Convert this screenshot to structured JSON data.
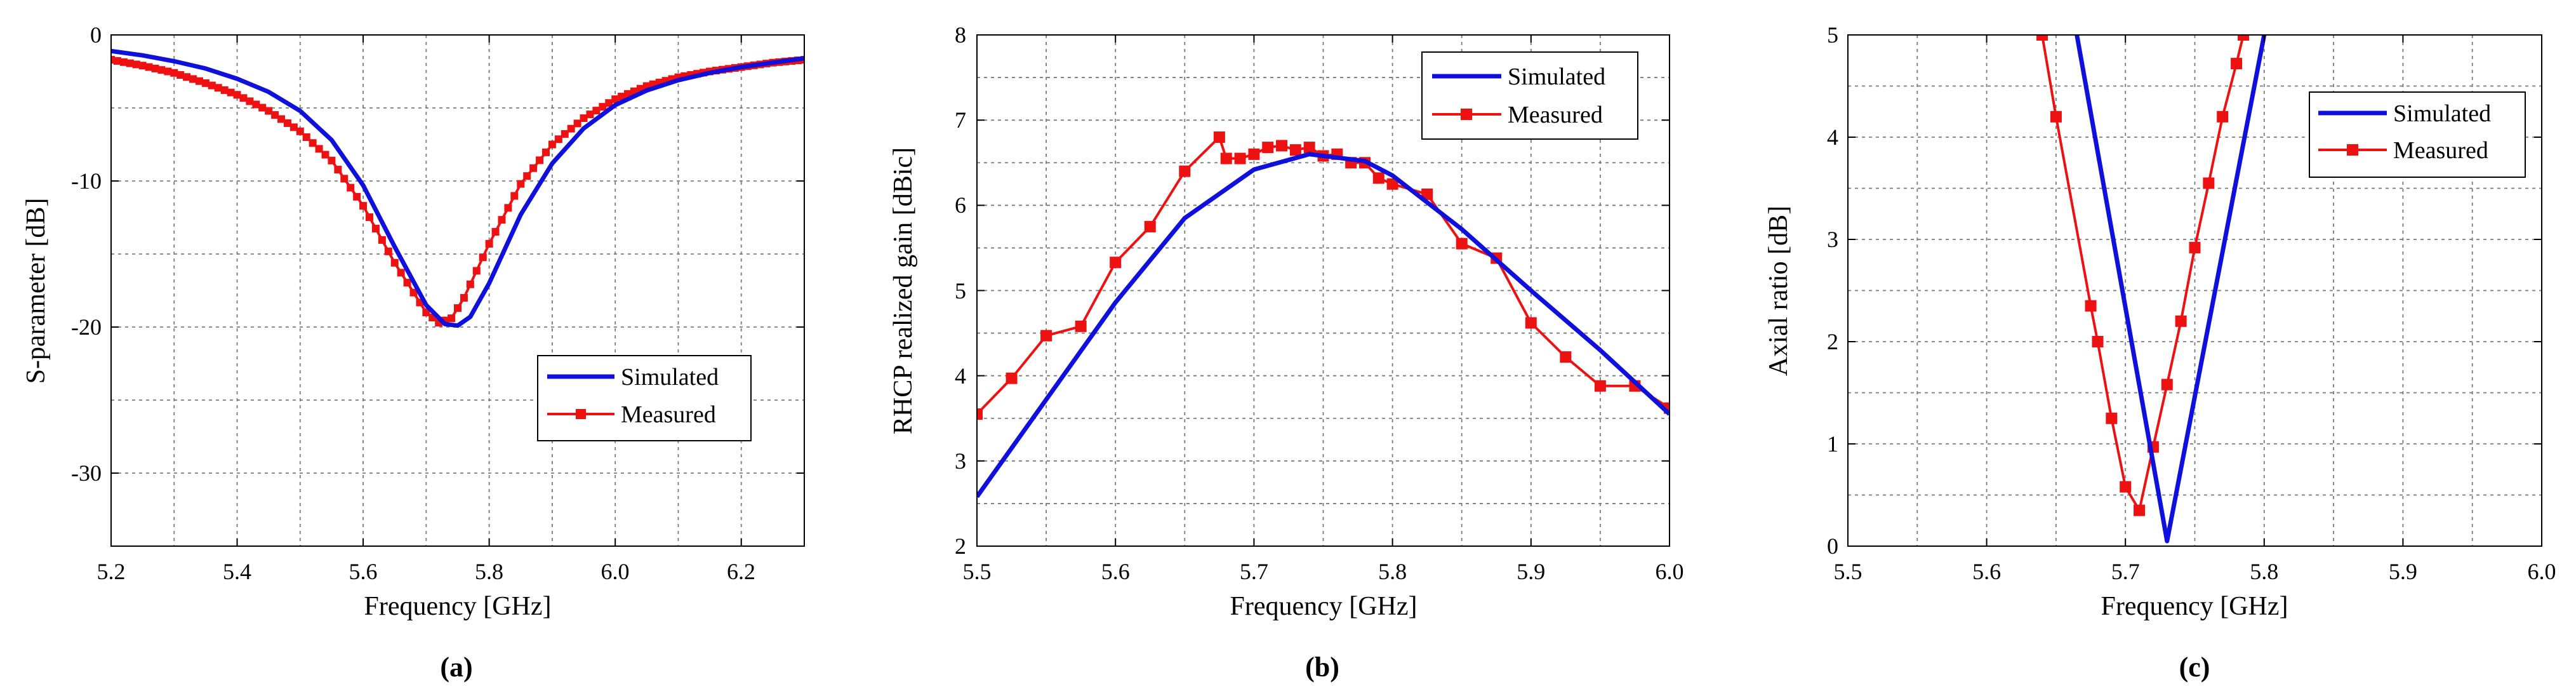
{
  "chart_data": [
    {
      "panel": "(a)",
      "type": "line",
      "xlabel": "Frequency [GHz]",
      "ylabel": "S-parameter [dB]",
      "xlim": [
        5.2,
        6.3
      ],
      "ylim": [
        -35,
        0
      ],
      "xticks": [
        5.2,
        5.4,
        5.6,
        5.8,
        6.0,
        6.2
      ],
      "xtick_labels": [
        "5.2",
        "5.4",
        "5.6",
        "5.8",
        "6.0",
        "6.2"
      ],
      "yticks": [
        0,
        -10,
        -20,
        -30
      ],
      "ytick_labels": [
        "0",
        "-10",
        "-20",
        "-30"
      ],
      "xgrid": [
        5.2,
        5.3,
        5.4,
        5.5,
        5.6,
        5.7,
        5.8,
        5.9,
        6.0,
        6.1,
        6.2
      ],
      "ygrid": [
        -5,
        -10,
        -15,
        -20,
        -25,
        -30
      ],
      "legend": {
        "position": "lower-right",
        "entries": [
          "Simulated",
          "Measured"
        ]
      },
      "series": [
        {
          "name": "Simulated",
          "color": "#1010dd",
          "style": "solid",
          "x": [
            5.2,
            5.25,
            5.3,
            5.35,
            5.4,
            5.45,
            5.5,
            5.55,
            5.6,
            5.65,
            5.7,
            5.73,
            5.75,
            5.77,
            5.8,
            5.85,
            5.9,
            5.95,
            6.0,
            6.05,
            6.1,
            6.15,
            6.2,
            6.25,
            6.3
          ],
          "y": [
            -1.1,
            -1.4,
            -1.8,
            -2.3,
            -3.0,
            -3.9,
            -5.2,
            -7.2,
            -10.3,
            -14.5,
            -18.5,
            -19.8,
            -19.9,
            -19.3,
            -17.0,
            -12.3,
            -8.8,
            -6.4,
            -4.8,
            -3.8,
            -3.1,
            -2.6,
            -2.2,
            -1.9,
            -1.6
          ]
        },
        {
          "name": "Measured",
          "color": "#ee1111",
          "style": "dense-square-markers",
          "x": [
            5.2,
            5.25,
            5.3,
            5.35,
            5.4,
            5.45,
            5.5,
            5.55,
            5.6,
            5.65,
            5.7,
            5.72,
            5.74,
            5.76,
            5.8,
            5.85,
            5.9,
            5.95,
            6.0,
            6.05,
            6.1,
            6.15,
            6.2,
            6.25,
            6.3
          ],
          "y": [
            -1.7,
            -2.1,
            -2.6,
            -3.3,
            -4.1,
            -5.2,
            -6.6,
            -8.6,
            -11.7,
            -15.6,
            -19.0,
            -19.7,
            -19.4,
            -18.0,
            -14.3,
            -10.2,
            -7.5,
            -5.7,
            -4.4,
            -3.5,
            -2.9,
            -2.5,
            -2.2,
            -1.9,
            -1.7
          ]
        }
      ],
      "marker_step": 0.01
    },
    {
      "panel": "(b)",
      "type": "line",
      "xlabel": "Frequency [GHz]",
      "ylabel": "RHCP realized gain [dBic]",
      "xlim": [
        5.5,
        6.0
      ],
      "ylim": [
        2,
        8
      ],
      "xticks": [
        5.5,
        5.6,
        5.7,
        5.8,
        5.9,
        6.0
      ],
      "xtick_labels": [
        "5.5",
        "5.6",
        "5.7",
        "5.8",
        "5.9",
        "6.0"
      ],
      "yticks": [
        2,
        3,
        4,
        5,
        6,
        7,
        8
      ],
      "ytick_labels": [
        "2",
        "3",
        "4",
        "5",
        "6",
        "7",
        "8"
      ],
      "xgrid": [
        5.55,
        5.6,
        5.65,
        5.7,
        5.75,
        5.8,
        5.85,
        5.9,
        5.95
      ],
      "ygrid": [
        2.5,
        3,
        3.5,
        4,
        4.5,
        5,
        5.5,
        6,
        6.5,
        7,
        7.5
      ],
      "legend": {
        "position": "top-right",
        "entries": [
          "Simulated",
          "Measured"
        ]
      },
      "series": [
        {
          "name": "Simulated",
          "color": "#1010dd",
          "style": "solid",
          "x": [
            5.5,
            5.55,
            5.6,
            5.65,
            5.7,
            5.74,
            5.78,
            5.8,
            5.85,
            5.9,
            5.95,
            6.0
          ],
          "y": [
            2.58,
            3.72,
            4.86,
            5.85,
            6.42,
            6.6,
            6.52,
            6.35,
            5.72,
            5.0,
            4.3,
            3.55
          ]
        },
        {
          "name": "Measured",
          "color": "#ee1111",
          "style": "square-markers",
          "x": [
            5.5,
            5.525,
            5.55,
            5.575,
            5.6,
            5.625,
            5.65,
            5.675,
            5.68,
            5.69,
            5.7,
            5.71,
            5.72,
            5.73,
            5.74,
            5.75,
            5.76,
            5.77,
            5.78,
            5.79,
            5.8,
            5.825,
            5.85,
            5.875,
            5.9,
            5.925,
            5.95,
            5.975,
            6.0
          ],
          "y": [
            3.55,
            3.97,
            4.47,
            4.58,
            5.33,
            5.75,
            6.4,
            6.8,
            6.55,
            6.55,
            6.6,
            6.68,
            6.7,
            6.65,
            6.68,
            6.58,
            6.6,
            6.5,
            6.5,
            6.32,
            6.25,
            6.13,
            5.55,
            5.38,
            4.62,
            4.22,
            3.88,
            3.88,
            3.62
          ]
        }
      ]
    },
    {
      "panel": "(c)",
      "type": "line",
      "xlabel": "Frequency [GHz]",
      "ylabel": "Axial ratio [dB]",
      "xlim": [
        5.5,
        6.0
      ],
      "ylim": [
        0,
        5
      ],
      "xticks": [
        5.5,
        5.6,
        5.7,
        5.8,
        5.9,
        6.0
      ],
      "xtick_labels": [
        "5.5",
        "5.6",
        "5.7",
        "5.8",
        "5.9",
        "6.0"
      ],
      "yticks": [
        0,
        1,
        2,
        3,
        4,
        5
      ],
      "ytick_labels": [
        "0",
        "1",
        "2",
        "3",
        "4",
        "5"
      ],
      "xgrid": [
        5.55,
        5.6,
        5.65,
        5.7,
        5.75,
        5.8,
        5.85,
        5.9,
        5.95
      ],
      "ygrid": [
        0.5,
        1,
        1.5,
        2,
        2.5,
        3,
        3.5,
        4,
        4.5
      ],
      "legend": {
        "position": "top-right",
        "entries": [
          "Simulated",
          "Measured"
        ]
      },
      "series": [
        {
          "name": "Simulated",
          "color": "#1010dd",
          "style": "solid",
          "x": [
            5.665,
            5.73,
            5.8
          ],
          "y": [
            5.0,
            0.05,
            5.0
          ]
        },
        {
          "name": "Measured",
          "color": "#ee1111",
          "style": "square-markers",
          "x": [
            5.64,
            5.65,
            5.675,
            5.68,
            5.69,
            5.7,
            5.71,
            5.72,
            5.73,
            5.74,
            5.75,
            5.76,
            5.77,
            5.78,
            5.785
          ],
          "y": [
            5.0,
            4.2,
            2.35,
            2.0,
            1.25,
            0.58,
            0.35,
            0.97,
            1.58,
            2.2,
            2.92,
            3.55,
            4.2,
            4.72,
            5.0
          ]
        }
      ]
    }
  ],
  "series_colors": {
    "simulated": "#1010dd",
    "measured": "#ee1111"
  }
}
